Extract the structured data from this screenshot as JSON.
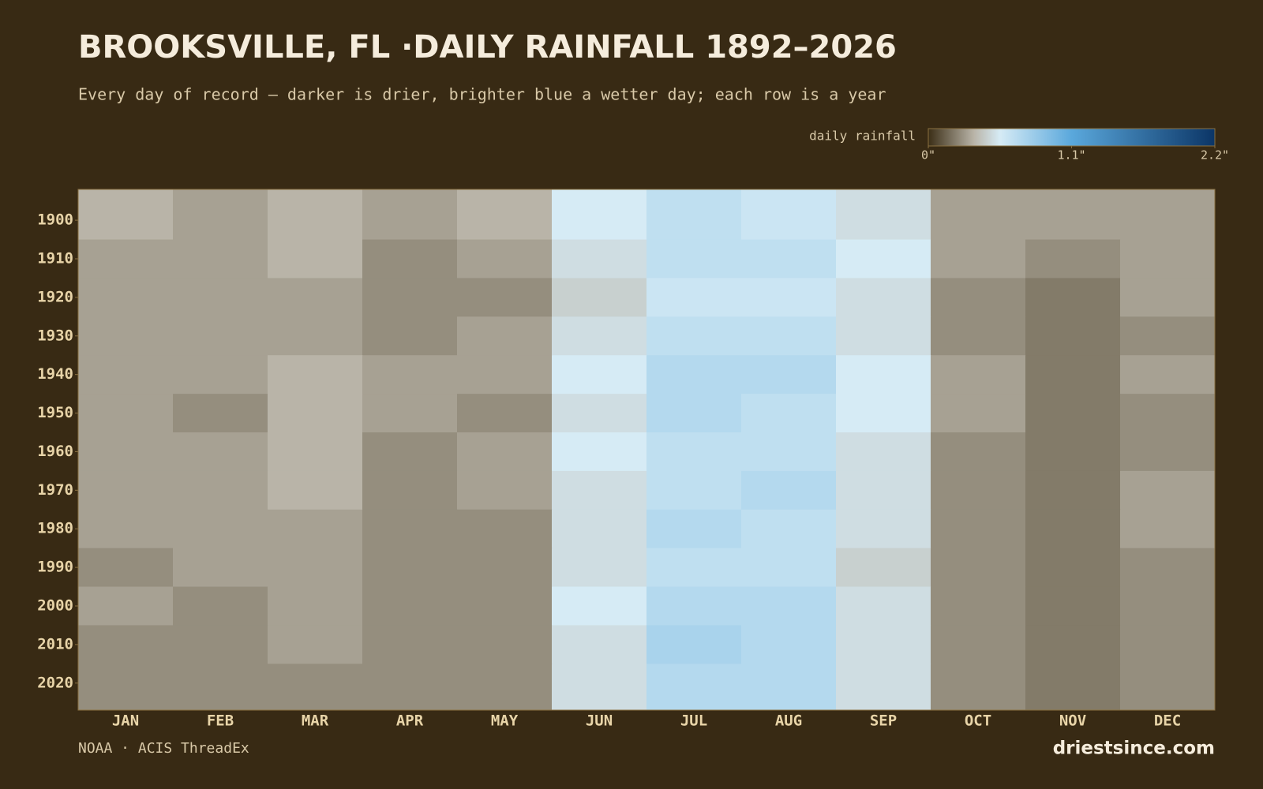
{
  "chart_data": {
    "type": "heatmap",
    "title": "BROOKSVILLE, FL ·DAILY RAINFALL 1892–2026",
    "subtitle": "Every day of record — darker is drier, brighter blue a wetter day; each row is a year",
    "source": "NOAA · ACIS ThreadEx",
    "brand": "driestsince.com",
    "legend_label": "daily rainfall",
    "categories": [
      "JAN",
      "FEB",
      "MAR",
      "APR",
      "MAY",
      "JUN",
      "JUL",
      "AUG",
      "SEP",
      "OCT",
      "NOV",
      "DEC"
    ],
    "y": [
      1900,
      1910,
      1920,
      1930,
      1940,
      1950,
      1960,
      1970,
      1980,
      1990,
      2000,
      2010,
      2020
    ],
    "values": [
      [
        0.35,
        0.3,
        0.35,
        0.3,
        0.35,
        0.55,
        0.65,
        0.6,
        0.5,
        0.3,
        0.3,
        0.3
      ],
      [
        0.3,
        0.3,
        0.35,
        0.25,
        0.3,
        0.5,
        0.65,
        0.65,
        0.55,
        0.3,
        0.25,
        0.3
      ],
      [
        0.3,
        0.3,
        0.3,
        0.25,
        0.25,
        0.45,
        0.6,
        0.6,
        0.5,
        0.25,
        0.2,
        0.3
      ],
      [
        0.3,
        0.3,
        0.3,
        0.25,
        0.3,
        0.5,
        0.65,
        0.65,
        0.5,
        0.25,
        0.2,
        0.25
      ],
      [
        0.3,
        0.3,
        0.35,
        0.3,
        0.3,
        0.55,
        0.7,
        0.7,
        0.55,
        0.3,
        0.2,
        0.3
      ],
      [
        0.3,
        0.25,
        0.35,
        0.3,
        0.25,
        0.5,
        0.7,
        0.65,
        0.55,
        0.3,
        0.2,
        0.25
      ],
      [
        0.3,
        0.3,
        0.35,
        0.25,
        0.3,
        0.55,
        0.65,
        0.65,
        0.5,
        0.25,
        0.2,
        0.25
      ],
      [
        0.3,
        0.3,
        0.35,
        0.25,
        0.3,
        0.5,
        0.65,
        0.7,
        0.5,
        0.25,
        0.2,
        0.3
      ],
      [
        0.3,
        0.3,
        0.3,
        0.25,
        0.25,
        0.5,
        0.7,
        0.65,
        0.5,
        0.25,
        0.2,
        0.3
      ],
      [
        0.25,
        0.3,
        0.3,
        0.25,
        0.25,
        0.5,
        0.65,
        0.65,
        0.45,
        0.25,
        0.2,
        0.25
      ],
      [
        0.3,
        0.25,
        0.3,
        0.25,
        0.25,
        0.55,
        0.7,
        0.7,
        0.5,
        0.25,
        0.2,
        0.25
      ],
      [
        0.25,
        0.25,
        0.3,
        0.25,
        0.25,
        0.5,
        0.75,
        0.7,
        0.5,
        0.25,
        0.2,
        0.25
      ],
      [
        0.25,
        0.25,
        0.25,
        0.25,
        0.25,
        0.5,
        0.7,
        0.7,
        0.5,
        0.25,
        0.2,
        0.25
      ]
    ],
    "ylim": [
      1892,
      2027
    ],
    "yticks": [
      1900,
      1910,
      1920,
      1930,
      1940,
      1950,
      1960,
      1970,
      1980,
      1990,
      2000,
      2010,
      2020
    ],
    "clim": [
      0,
      2.2
    ],
    "cticks": [
      {
        "value": 0,
        "label": "0\""
      },
      {
        "value": 1.1,
        "label": "1.1\""
      },
      {
        "value": 2.2,
        "label": "2.2\""
      }
    ],
    "colorscale": [
      [
        0,
        "#3b2e16"
      ],
      [
        0.35,
        "#b9b4a8"
      ],
      [
        0.55,
        "#d6ebf5"
      ],
      [
        1.1,
        "#5aa8dc"
      ],
      [
        2.2,
        "#0b3566"
      ]
    ]
  }
}
